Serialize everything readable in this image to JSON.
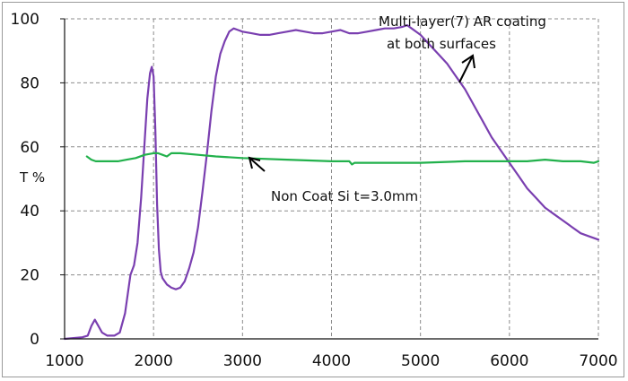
{
  "chart_data": {
    "type": "line",
    "title": "",
    "xlabel": "",
    "ylabel": "T %",
    "xlim": [
      1000,
      7000
    ],
    "ylim": [
      0,
      100
    ],
    "xticks": [
      "1000",
      "2000",
      "3000",
      "4000",
      "5000",
      "6000",
      "7000"
    ],
    "yticks": [
      "0",
      "20",
      "40",
      "60",
      "80",
      "100"
    ],
    "grid": true,
    "series": [
      {
        "name": "Multi-layer(7) AR coating at both surfaces",
        "color": "#7a3fb0",
        "x": [
          1000,
          1200,
          1260,
          1300,
          1340,
          1380,
          1420,
          1480,
          1560,
          1620,
          1680,
          1740,
          1780,
          1820,
          1860,
          1900,
          1930,
          1960,
          1980,
          2000,
          2020,
          2040,
          2060,
          2080,
          2100,
          2150,
          2200,
          2250,
          2300,
          2350,
          2400,
          2450,
          2500,
          2550,
          2600,
          2650,
          2700,
          2750,
          2800,
          2850,
          2900,
          2950,
          3000,
          3100,
          3200,
          3300,
          3400,
          3500,
          3600,
          3700,
          3800,
          3900,
          4000,
          4100,
          4200,
          4300,
          4400,
          4500,
          4600,
          4700,
          4800,
          4850,
          4900,
          4950,
          5000,
          5100,
          5200,
          5300,
          5400,
          5500,
          5600,
          5700,
          5800,
          5900,
          6000,
          6100,
          6200,
          6300,
          6400,
          6500,
          6600,
          6700,
          6800,
          6900,
          7000
        ],
        "y": [
          0,
          0.5,
          1,
          4,
          6,
          4,
          2,
          1,
          1,
          2,
          8,
          20,
          23,
          30,
          44,
          62,
          75,
          83,
          85,
          82,
          65,
          42,
          28,
          21,
          19,
          17,
          16,
          15.5,
          16,
          18,
          22,
          27,
          35,
          46,
          58,
          71,
          82,
          89,
          93,
          96,
          97,
          96.5,
          96,
          95.5,
          95,
          95,
          95.5,
          96,
          96.5,
          96,
          95.5,
          95.5,
          96,
          96.5,
          95.5,
          95.5,
          96,
          96.5,
          97,
          97,
          97.5,
          98,
          97,
          96,
          95,
          92,
          89,
          86,
          82,
          78,
          73,
          68,
          63,
          59,
          55,
          51,
          47,
          44,
          41,
          39,
          37,
          35,
          33,
          32,
          31
        ]
      },
      {
        "name": "Non Coat Si t=3.0mm",
        "color": "#22b14c",
        "x": [
          1250,
          1300,
          1350,
          1400,
          1500,
          1600,
          1700,
          1800,
          1900,
          2000,
          2050,
          2100,
          2150,
          2200,
          2300,
          2500,
          2700,
          3000,
          3500,
          4000,
          4200,
          4230,
          4260,
          4300,
          4500,
          5000,
          5500,
          6000,
          6200,
          6400,
          6600,
          6800,
          6950,
          7000
        ],
        "y": [
          57,
          56,
          55.5,
          55.5,
          55.5,
          55.5,
          56,
          56.5,
          57.5,
          58,
          58,
          57.5,
          57,
          58,
          58,
          57.5,
          57,
          56.5,
          56,
          55.5,
          55.5,
          54.5,
          55,
          55,
          55,
          55,
          55.5,
          55.5,
          55.5,
          56,
          55.5,
          55.5,
          55,
          55.5
        ]
      }
    ],
    "annotations": [
      {
        "lines": [
          "Multi-layer(7) AR coating",
          "at both surfaces"
        ]
      },
      {
        "lines": [
          "Non Coat Si t=3.0mm"
        ]
      }
    ]
  }
}
